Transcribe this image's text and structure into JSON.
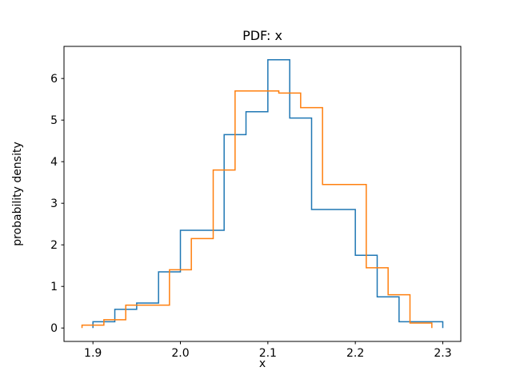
{
  "chart_data": {
    "type": "line",
    "style": "step-histogram-pdf",
    "title": "PDF: x",
    "xlabel": "x",
    "ylabel": "probability density",
    "xlim": [
      1.8669,
      2.3206
    ],
    "ylim": [
      -0.3225,
      6.7725
    ],
    "xticks": [
      1.9,
      2.0,
      2.1,
      2.2,
      2.3
    ],
    "xtick_labels": [
      "1.9",
      "2.0",
      "2.1",
      "2.2",
      "2.3"
    ],
    "yticks": [
      0,
      1,
      2,
      3,
      4,
      5,
      6
    ],
    "ytick_labels": [
      "0",
      "1",
      "2",
      "3",
      "4",
      "5",
      "6"
    ],
    "grid": false,
    "legend": "none",
    "series": [
      {
        "name": "series-blue",
        "color": "#1f77b4",
        "bin_edges": [
          1.9,
          1.925,
          1.95,
          1.975,
          2.0,
          2.025,
          2.05,
          2.075,
          2.1,
          2.125,
          2.15,
          2.175,
          2.2,
          2.225,
          2.25,
          2.275,
          2.3
        ],
        "values": [
          0.15,
          0.45,
          0.6,
          1.35,
          2.35,
          2.35,
          4.65,
          5.2,
          6.45,
          5.05,
          2.85,
          2.85,
          1.75,
          0.75,
          0.15,
          0.15
        ]
      },
      {
        "name": "series-orange",
        "color": "#ff7f0e",
        "bin_edges": [
          1.8875,
          1.9125,
          1.9375,
          1.9625,
          1.9875,
          2.0125,
          2.0375,
          2.0625,
          2.0875,
          2.1125,
          2.1375,
          2.1625,
          2.1875,
          2.2125,
          2.2375,
          2.2625,
          2.2875
        ],
        "values": [
          0.07,
          0.2,
          0.55,
          0.55,
          1.4,
          2.15,
          3.8,
          5.7,
          5.7,
          5.65,
          5.3,
          3.45,
          3.45,
          1.45,
          0.8,
          0.12
        ]
      }
    ]
  }
}
